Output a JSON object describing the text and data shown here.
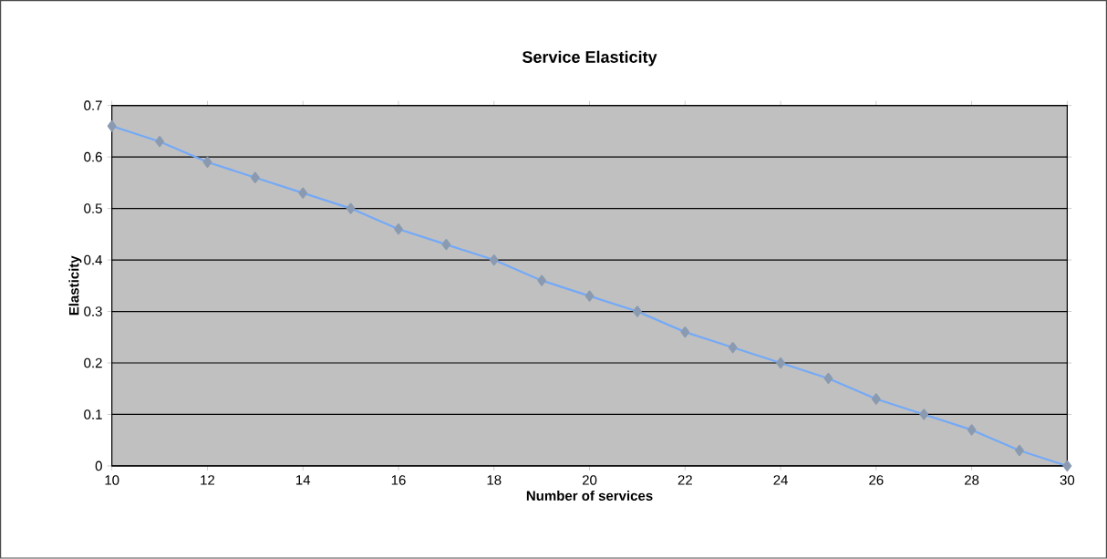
{
  "chart_data": {
    "type": "line",
    "title": "Service Elasticity",
    "xlabel": "Number of services",
    "ylabel": "Elasticity",
    "x": [
      10,
      11,
      12,
      13,
      14,
      15,
      16,
      17,
      18,
      19,
      20,
      21,
      22,
      23,
      24,
      25,
      26,
      27,
      28,
      29,
      30
    ],
    "series": [
      {
        "color": "#74a9f7",
        "values": [
          0.66,
          0.63,
          0.59,
          0.56,
          0.53,
          0.5,
          0.46,
          0.43,
          0.4,
          0.36,
          0.33,
          0.3,
          0.26,
          0.23,
          0.2,
          0.17,
          0.13,
          0.1,
          0.07,
          0.03,
          0
        ]
      }
    ],
    "xlim": [
      10,
      30
    ],
    "xticks": [
      10,
      12,
      14,
      16,
      18,
      20,
      22,
      24,
      26,
      28,
      30
    ],
    "ylim": [
      0,
      0.7
    ],
    "yticks": [
      {
        "value": 0,
        "label": "0"
      },
      0.1,
      0.2,
      0.3,
      0.4,
      0.5,
      0.6,
      0.7
    ],
    "grid": "y",
    "marker": "diamond",
    "line_style": "solid"
  }
}
